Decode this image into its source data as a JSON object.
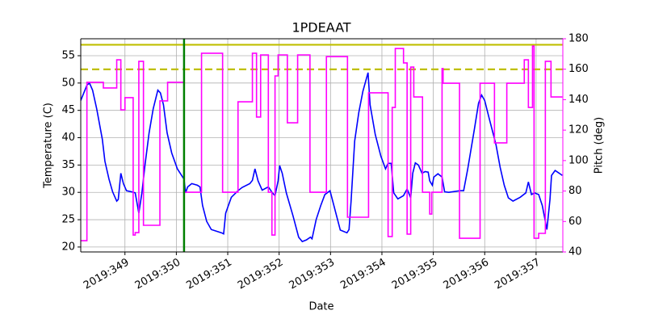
{
  "chart_data": {
    "type": "line",
    "title": "1PDEAAT",
    "xlabel": "Date",
    "ylabel": "Temperature (C)",
    "y2label": "Pitch (deg)",
    "xlim": [
      348.14,
      357.52
    ],
    "xticks": [
      {
        "value": 349,
        "label": "2019:349"
      },
      {
        "value": 350,
        "label": "2019:350"
      },
      {
        "value": 351,
        "label": "2019:351"
      },
      {
        "value": 352,
        "label": "2019:352"
      },
      {
        "value": 353,
        "label": "2019:353"
      },
      {
        "value": 354,
        "label": "2019:354"
      },
      {
        "value": 355,
        "label": "2019:355"
      },
      {
        "value": 356,
        "label": "2019:356"
      },
      {
        "value": 357,
        "label": "2019:357"
      }
    ],
    "ylim": [
      19.1,
      58.1
    ],
    "yticks": [
      20,
      25,
      30,
      35,
      40,
      45,
      50,
      55
    ],
    "y2lim": [
      40,
      180
    ],
    "y2ticks": [
      40,
      60,
      80,
      100,
      120,
      140,
      160,
      180
    ],
    "y2color": "#ff00ff",
    "grid": true,
    "hlines": [
      {
        "y": 57,
        "color": "#bfbf00",
        "style": "solid"
      },
      {
        "y": 52.5,
        "color": "#bfbf00",
        "style": "dashed"
      }
    ],
    "vlines": [
      {
        "x": 350.15,
        "color": "#008000",
        "style": "solid"
      }
    ],
    "series": [
      {
        "color": "#0000ff",
        "axis": "y",
        "drawstyle": "default",
        "x": [
          348.14,
          348.26,
          348.31,
          348.37,
          348.45,
          348.56,
          348.61,
          348.69,
          348.76,
          348.84,
          348.87,
          348.92,
          348.97,
          349.03,
          349.13,
          349.2,
          349.27,
          349.33,
          349.39,
          349.47,
          349.55,
          349.64,
          349.69,
          349.75,
          349.82,
          349.91,
          350.02,
          350.15,
          350.18,
          350.22,
          350.3,
          350.41,
          350.46,
          350.51,
          350.59,
          350.68,
          350.88,
          350.92,
          350.96,
          351.07,
          351.2,
          351.28,
          351.43,
          351.48,
          351.53,
          351.59,
          351.67,
          351.79,
          351.87,
          351.92,
          351.98,
          352.01,
          352.06,
          352.14,
          352.27,
          352.38,
          352.45,
          352.53,
          352.61,
          352.64,
          352.72,
          352.81,
          352.89,
          352.99,
          353.19,
          353.32,
          353.36,
          353.4,
          353.47,
          353.55,
          353.63,
          353.73,
          353.77,
          353.87,
          353.98,
          354.07,
          354.12,
          354.18,
          354.23,
          354.31,
          354.42,
          354.49,
          354.56,
          354.6,
          354.65,
          354.71,
          354.78,
          354.84,
          354.9,
          354.93,
          354.98,
          355.01,
          355.09,
          355.17,
          355.22,
          355.3,
          355.52,
          355.59,
          355.67,
          355.8,
          355.88,
          355.94,
          356.0,
          356.08,
          356.22,
          356.3,
          356.38,
          356.46,
          356.55,
          356.69,
          356.8,
          356.85,
          356.91,
          356.97,
          357.05,
          357.12,
          357.21,
          357.27,
          357.3,
          357.37,
          357.45,
          357.51
        ],
        "values": [
          46.8,
          49.6,
          50.0,
          48.7,
          45.3,
          39.7,
          35.7,
          32.4,
          30.1,
          28.4,
          28.7,
          33.5,
          31.6,
          30.3,
          30.1,
          29.9,
          26.2,
          29.9,
          35.0,
          40.9,
          45.3,
          48.7,
          48.2,
          46.0,
          40.9,
          37.2,
          34.3,
          32.4,
          29.9,
          31.0,
          31.6,
          31.3,
          31.0,
          27.6,
          24.7,
          23.2,
          22.6,
          22.4,
          26.2,
          29.1,
          30.3,
          30.9,
          31.6,
          32.2,
          34.3,
          32.1,
          30.4,
          31.0,
          29.9,
          29.4,
          32.1,
          34.9,
          33.5,
          29.9,
          25.7,
          21.8,
          21.0,
          21.3,
          21.8,
          21.5,
          25.0,
          27.6,
          29.6,
          30.3,
          23.1,
          22.6,
          23.2,
          28.4,
          39.4,
          44.6,
          48.5,
          51.9,
          46.0,
          40.6,
          36.6,
          34.3,
          35.3,
          35.3,
          29.9,
          28.8,
          29.4,
          30.6,
          29.0,
          33.5,
          35.4,
          35.0,
          33.5,
          33.8,
          33.7,
          32.1,
          31.3,
          32.8,
          33.4,
          32.8,
          30.1,
          30.0,
          30.3,
          30.3,
          34.3,
          41.6,
          46.3,
          47.8,
          46.8,
          43.8,
          38.7,
          34.6,
          31.3,
          29.0,
          28.4,
          29.1,
          29.9,
          31.9,
          29.6,
          29.9,
          29.6,
          27.6,
          23.2,
          28.7,
          33.1,
          34.0,
          33.5,
          33.1
        ]
      },
      {
        "color": "#ff00ff",
        "axis": "y2",
        "drawstyle": "steps-post",
        "x": [
          348.14,
          348.26,
          348.58,
          348.84,
          348.92,
          349.0,
          349.16,
          349.2,
          349.27,
          349.36,
          349.68,
          349.83,
          350.15,
          350.49,
          350.9,
          351.2,
          351.48,
          351.56,
          351.64,
          351.79,
          351.86,
          351.92,
          351.98,
          352.16,
          352.36,
          352.6,
          352.92,
          353.33,
          353.74,
          354.12,
          354.2,
          354.26,
          354.42,
          354.49,
          354.56,
          354.62,
          354.79,
          354.93,
          354.97,
          355.17,
          355.19,
          355.51,
          355.91,
          356.19,
          356.43,
          356.77,
          356.85,
          356.93,
          356.96,
          357.05,
          357.18,
          357.29,
          357.51
        ],
        "values": [
          47.4,
          151.4,
          147.7,
          166.2,
          133.3,
          141.3,
          51.1,
          52.7,
          165.2,
          57.5,
          139.2,
          151.4,
          79.2,
          170.5,
          79.2,
          138.6,
          170.5,
          128.6,
          169.4,
          79.2,
          51.1,
          155.6,
          169.4,
          124.8,
          169.4,
          79.2,
          168.3,
          62.8,
          144.5,
          50.1,
          134.9,
          173.6,
          164.1,
          51.7,
          161.4,
          141.8,
          79.2,
          64.9,
          79.2,
          160.4,
          150.8,
          49.0,
          150.8,
          111.6,
          150.8,
          166.2,
          134.9,
          175.2,
          49.0,
          52.2,
          165.2,
          141.8,
          141.8
        ]
      }
    ]
  }
}
